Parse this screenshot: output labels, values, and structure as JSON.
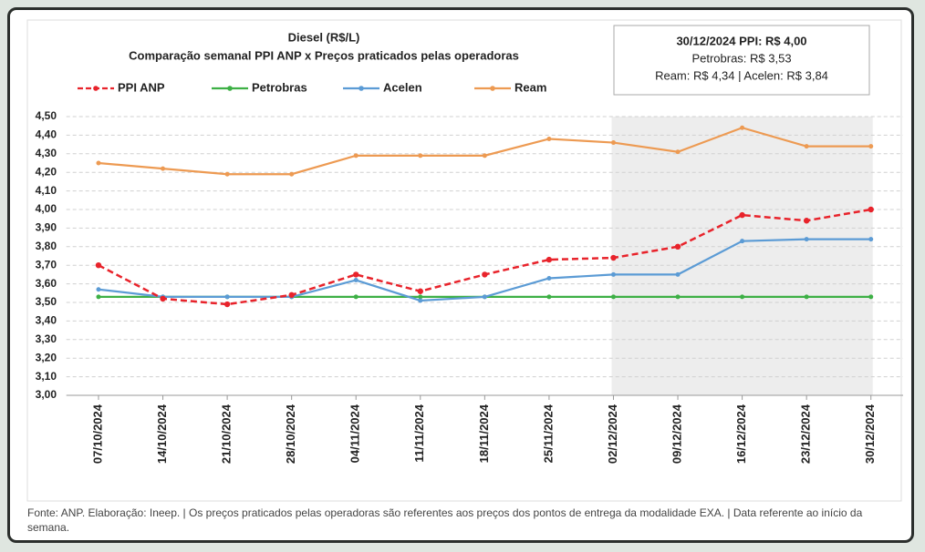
{
  "chart_data": {
    "type": "line",
    "title": "Diesel (R$/L)",
    "subtitle": "Comparação semanal PPI ANP x Preços praticados pelas operadoras",
    "categories": [
      "07/10/2024",
      "14/10/2024",
      "21/10/2024",
      "28/10/2024",
      "04/11/2024",
      "11/11/2024",
      "18/11/2024",
      "25/11/2024",
      "02/12/2024",
      "09/12/2024",
      "16/12/2024",
      "23/12/2024",
      "30/12/2024"
    ],
    "series": [
      {
        "name": "PPI ANP",
        "color": "#e8232b",
        "dashed": true,
        "values": [
          3.7,
          3.52,
          3.49,
          3.54,
          3.65,
          3.56,
          3.65,
          3.73,
          3.74,
          3.8,
          3.97,
          3.94,
          4.0
        ]
      },
      {
        "name": "Petrobras",
        "color": "#3db045",
        "values": [
          3.53,
          3.53,
          3.53,
          3.53,
          3.53,
          3.53,
          3.53,
          3.53,
          3.53,
          3.53,
          3.53,
          3.53,
          3.53
        ]
      },
      {
        "name": "Acelen",
        "color": "#5b9bd5",
        "values": [
          3.57,
          3.53,
          3.53,
          3.53,
          3.62,
          3.51,
          3.53,
          3.63,
          3.65,
          3.65,
          3.83,
          3.84,
          3.84
        ]
      },
      {
        "name": "Ream",
        "color": "#ed9a52",
        "values": [
          4.25,
          4.22,
          4.19,
          4.19,
          4.29,
          4.29,
          4.29,
          4.38,
          4.36,
          4.31,
          4.44,
          4.34,
          4.34
        ]
      }
    ],
    "ylim": [
      3.0,
      4.5
    ],
    "yticks": [
      {
        "value": 3.0,
        "label": "3,00"
      },
      {
        "value": 3.1,
        "label": "3,10"
      },
      {
        "value": 3.2,
        "label": "3,20"
      },
      {
        "value": 3.3,
        "label": "3,30"
      },
      {
        "value": 3.4,
        "label": "3,40"
      },
      {
        "value": 3.5,
        "label": "3,50"
      },
      {
        "value": 3.6,
        "label": "3,60"
      },
      {
        "value": 3.7,
        "label": "3,70"
      },
      {
        "value": 3.8,
        "label": "3,80"
      },
      {
        "value": 3.9,
        "label": "3,90"
      },
      {
        "value": 4.0,
        "label": "4,00"
      },
      {
        "value": 4.1,
        "label": "4,10"
      },
      {
        "value": 4.2,
        "label": "4,20"
      },
      {
        "value": 4.3,
        "label": "4,30"
      },
      {
        "value": 4.4,
        "label": "4,40"
      },
      {
        "value": 4.5,
        "label": "4,50"
      }
    ],
    "grid": true,
    "info_box": [
      "30/12/2024  PPI: R$ 4,00",
      "Petrobras: R$ 3,53",
      "Ream: R$ 4,34 | Acelen: R$ 3,84"
    ],
    "source": "Fonte: ANP. Elaboração: Ineep. | Os preços praticados pelas operadoras são referentes aos preços dos pontos de entrega da modalidade EXA. | Data referente ao início da semana."
  }
}
